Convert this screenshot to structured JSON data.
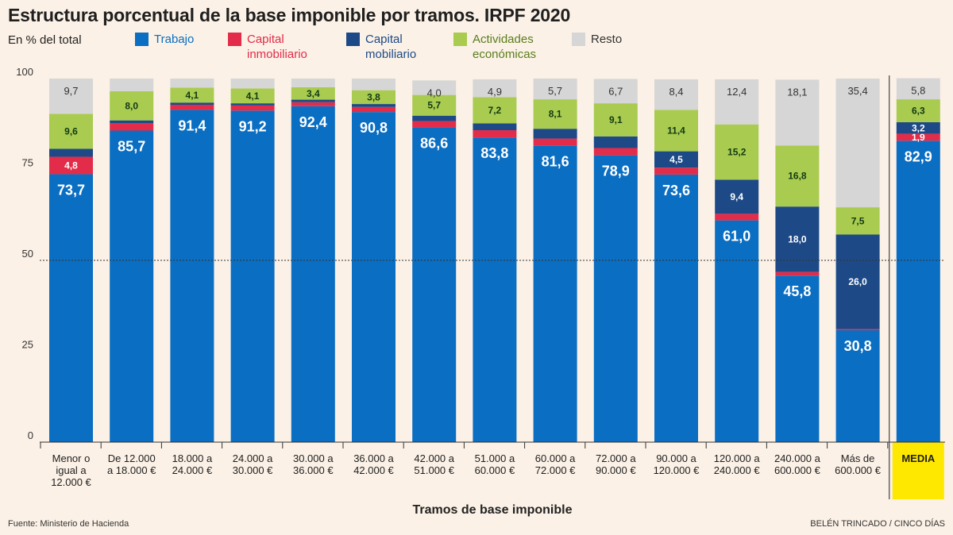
{
  "title": "Estructura porcentual de la base imponible por tramos. IRPF 2020",
  "unit_label": "En % del total",
  "source": "Fuente: Ministerio de Hacienda",
  "credit": "BELÉN TRINCADO / CINCO DÍAS",
  "chart_data": {
    "type": "bar",
    "stacked": true,
    "xlabel": "Tramos de base imponible",
    "ylabel": "",
    "ylim": [
      0,
      100
    ],
    "yticks": [
      0,
      25,
      50,
      75,
      100
    ],
    "grid": "dashed line at 50",
    "legend_position": "top",
    "categories": [
      "Menor o igual a 12.000 €",
      "De 12.000 a 18.000 €",
      "18.000 a 24.000 €",
      "24.000 a 30.000 €",
      "30.000 a 36.000 €",
      "36.000 a 42.000 €",
      "42.000 a 51.000 €",
      "51.000 a 60.000 €",
      "60.000 a 72.000 €",
      "72.000 a 90.000 €",
      "90.000 a 120.000 €",
      "120.000 a 240.000 €",
      "240.000 a 600.000 €",
      "Más de 600.000 €",
      "MEDIA"
    ],
    "category_lines": [
      [
        "Menor o",
        "igual a",
        "12.000 €"
      ],
      [
        "De 12.000",
        "a 18.000 €"
      ],
      [
        "18.000 a",
        "24.000 €"
      ],
      [
        "24.000 a",
        "30.000 €"
      ],
      [
        "30.000 a",
        "36.000 €"
      ],
      [
        "36.000 a",
        "42.000 €"
      ],
      [
        "42.000 a",
        "51.000 €"
      ],
      [
        "51.000 a",
        "60.000 €"
      ],
      [
        "60.000 a",
        "72.000 €"
      ],
      [
        "72.000 a",
        "90.000 €"
      ],
      [
        "90.000 a",
        "120.000 €"
      ],
      [
        "120.000 a",
        "240.000 €"
      ],
      [
        "240.000 a",
        "600.000 €"
      ],
      [
        "Más de",
        "600.000 €"
      ],
      [
        "MEDIA"
      ]
    ],
    "highlight_category": "MEDIA",
    "highlight_color": "#ffe800",
    "series": [
      {
        "name": "Trabajo",
        "color": "#0a6ec2",
        "values": [
          73.7,
          85.7,
          91.4,
          91.2,
          92.4,
          90.8,
          86.6,
          83.8,
          81.6,
          78.9,
          73.6,
          61.0,
          45.8,
          30.8,
          82.9
        ],
        "labels": [
          "73,7",
          "85,7",
          "91,4",
          "91,2",
          "92,4",
          "90,8",
          "86,6",
          "83,8",
          "81,6",
          "78,9",
          "73,6",
          "61,0",
          "45,8",
          "30,8",
          "82,9"
        ]
      },
      {
        "name": "Capital inmobiliario",
        "color": "#e22c4a",
        "values": [
          4.8,
          2.0,
          1.4,
          1.4,
          1.1,
          1.4,
          1.7,
          2.0,
          1.9,
          2.0,
          1.9,
          1.8,
          1.0,
          0.3,
          1.9
        ],
        "labels": [
          "4,8",
          "",
          "",
          "",
          "",
          "",
          "",
          "",
          "",
          "",
          "",
          "",
          "",
          "",
          "1,9"
        ]
      },
      {
        "name": "Capital mobiliario",
        "color": "#1d4a87",
        "values": [
          2.2,
          0.8,
          0.6,
          0.6,
          0.7,
          0.8,
          1.5,
          1.9,
          2.7,
          3.2,
          4.5,
          9.4,
          18.0,
          26.0,
          3.2
        ],
        "labels": [
          "",
          "",
          "",
          "",
          "",
          "",
          "",
          "",
          "",
          "",
          "4,5",
          "9,4",
          "18,0",
          "26,0",
          "3,2"
        ]
      },
      {
        "name": "Actividades económicas",
        "color": "#a9cb4f",
        "values": [
          9.6,
          8.0,
          4.1,
          4.1,
          3.4,
          3.8,
          5.7,
          7.2,
          8.1,
          9.1,
          11.4,
          15.2,
          16.8,
          7.5,
          6.3
        ],
        "labels": [
          "9,6",
          "8,0",
          "4,1",
          "4,1",
          "3,4",
          "3,8",
          "5,7",
          "7,2",
          "8,1",
          "9,1",
          "11,4",
          "15,2",
          "16,8",
          "7,5",
          "6,3"
        ]
      },
      {
        "name": "Resto",
        "color": "#d6d6d6",
        "values": [
          9.7,
          3.5,
          2.5,
          2.7,
          2.4,
          3.2,
          4.0,
          4.9,
          5.7,
          6.7,
          8.4,
          12.4,
          18.1,
          35.4,
          5.8
        ],
        "labels": [
          "9,7",
          "",
          "",
          "",
          "",
          "",
          "4,0",
          "4,9",
          "5,7",
          "6,7",
          "8,4",
          "12,4",
          "18,1",
          "35,4",
          "5,8"
        ]
      }
    ]
  },
  "legend": [
    {
      "name": "Trabajo",
      "color": "#0a6ec2",
      "text_color": "#0a6ec2"
    },
    {
      "name": "Capital\ninmobiliario",
      "color": "#e22c4a",
      "text_color": "#e22c4a"
    },
    {
      "name": "Capital\nmobiliario",
      "color": "#1d4a87",
      "text_color": "#1d4a87"
    },
    {
      "name": "Actividades\neconómicas",
      "color": "#a9cb4f",
      "text_color": "#5a7d1c"
    },
    {
      "name": "Resto",
      "color": "#d6d6d6",
      "text_color": "#333333"
    }
  ]
}
